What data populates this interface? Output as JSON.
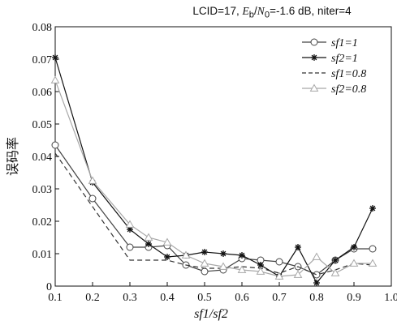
{
  "chart_data": {
    "type": "line",
    "title": {
      "lcid": "LCID=17,",
      "eb": "E",
      "eb_sub": "b",
      "slash": "/",
      "n0": "N",
      "n0_sub": "0",
      "rest": "=-1.6 dB, niter=4"
    },
    "xlabel": "sf1/sf2",
    "ylabel": "误码率",
    "xlim": [
      0.1,
      1.0
    ],
    "ylim": [
      0,
      0.08
    ],
    "xticks": [
      "0.1",
      "0.2",
      "0.3",
      "0.4",
      "0.5",
      "0.6",
      "0.7",
      "0.8",
      "0.9",
      "1.0"
    ],
    "yticks": [
      "0",
      "0.01",
      "0.02",
      "0.03",
      "0.04",
      "0.05",
      "0.06",
      "0.07",
      "0.08"
    ],
    "grid": false,
    "legend_position": "top-right",
    "series": [
      {
        "name": "sf1=1",
        "marker": "circle",
        "line": "solid",
        "color": "#444444",
        "x": [
          0.1,
          0.2,
          0.3,
          0.35,
          0.4,
          0.45,
          0.5,
          0.55,
          0.6,
          0.65,
          0.7,
          0.75,
          0.8,
          0.85,
          0.9,
          0.95
        ],
        "y": [
          0.0435,
          0.027,
          0.012,
          0.012,
          0.0125,
          0.0065,
          0.0045,
          0.005,
          0.0085,
          0.008,
          0.0075,
          0.006,
          0.0035,
          0.008,
          0.0115,
          0.0115
        ]
      },
      {
        "name": "sf2=1",
        "marker": "star",
        "line": "solid",
        "color": "#111111",
        "x": [
          0.1,
          0.2,
          0.3,
          0.35,
          0.4,
          0.45,
          0.5,
          0.55,
          0.6,
          0.65,
          0.7,
          0.75,
          0.8,
          0.85,
          0.9,
          0.95
        ],
        "y": [
          0.0705,
          0.032,
          0.0175,
          0.013,
          0.009,
          0.0095,
          0.0105,
          0.01,
          0.0095,
          0.0065,
          0.003,
          0.012,
          0.001,
          0.008,
          0.012,
          0.024
        ]
      },
      {
        "name": "sf1=0.8",
        "marker": "none",
        "line": "dashed",
        "color": "#333333",
        "x": [
          0.1,
          0.2,
          0.3,
          0.35,
          0.4,
          0.45,
          0.5,
          0.55,
          0.6,
          0.65,
          0.7,
          0.75,
          0.8,
          0.85,
          0.9,
          0.95
        ],
        "y": [
          0.041,
          0.0245,
          0.008,
          0.008,
          0.008,
          0.0065,
          0.0055,
          0.0055,
          0.006,
          0.0055,
          0.004,
          0.006,
          0.0035,
          0.005,
          0.007,
          0.0065
        ]
      },
      {
        "name": "sf2=0.8",
        "marker": "triangle",
        "line": "solid",
        "color": "#a8a8a8",
        "x": [
          0.1,
          0.2,
          0.3,
          0.35,
          0.4,
          0.45,
          0.5,
          0.55,
          0.6,
          0.65,
          0.7,
          0.75,
          0.8,
          0.85,
          0.9,
          0.95
        ],
        "y": [
          0.0635,
          0.0325,
          0.019,
          0.015,
          0.0135,
          0.0095,
          0.007,
          0.006,
          0.005,
          0.0045,
          0.003,
          0.0035,
          0.009,
          0.004,
          0.007,
          0.007
        ]
      }
    ]
  }
}
